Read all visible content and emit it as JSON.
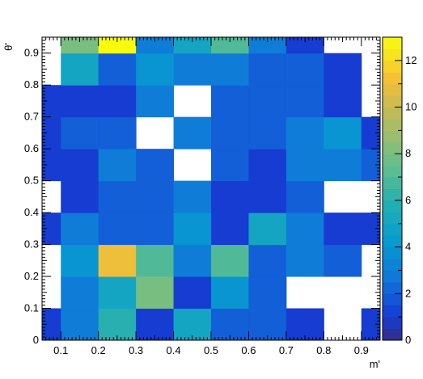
{
  "chart_data": {
    "type": "heatmap",
    "title": "",
    "xlabel": "m'",
    "ylabel": "θ'",
    "xlim": [
      0.05,
      0.95
    ],
    "ylim": [
      0,
      0.95
    ],
    "x_bin_edges": [
      0.05,
      0.1,
      0.2,
      0.3,
      0.4,
      0.5,
      0.6,
      0.7,
      0.8,
      0.9,
      0.95
    ],
    "y_bin_edges": [
      0,
      0.1,
      0.2,
      0.3,
      0.4,
      0.5,
      0.6,
      0.7,
      0.8,
      0.9,
      0.95
    ],
    "x_ticks": [
      "0.1",
      "0.2",
      "0.3",
      "0.4",
      "0.5",
      "0.6",
      "0.7",
      "0.8",
      "0.9"
    ],
    "y_ticks": [
      "0",
      "0.1",
      "0.2",
      "0.3",
      "0.4",
      "0.5",
      "0.6",
      "0.7",
      "0.8",
      "0.9"
    ],
    "colorbar_range": [
      0,
      13
    ],
    "colorbar_ticks": [
      "0",
      "2",
      "4",
      "6",
      "8",
      "10",
      "12"
    ],
    "grid": false,
    "values_note_rows_bottom_to_top": "",
    "z": [
      [
        1,
        3,
        6,
        1,
        5,
        2,
        2,
        1,
        0,
        1
      ],
      [
        0,
        3,
        5,
        8,
        1,
        4,
        2,
        0,
        0,
        0
      ],
      [
        0,
        4,
        11,
        7,
        3,
        7,
        2,
        3,
        2,
        0
      ],
      [
        1,
        3,
        2,
        2,
        4,
        1,
        5,
        3,
        1,
        1
      ],
      [
        0,
        1,
        2,
        2,
        3,
        1,
        1,
        2,
        0,
        0
      ],
      [
        1,
        1,
        3,
        2,
        0,
        2,
        1,
        3,
        3,
        2
      ],
      [
        1,
        2,
        2,
        0,
        3,
        2,
        2,
        3,
        4,
        1
      ],
      [
        1,
        1,
        1,
        3,
        0,
        2,
        2,
        2,
        1,
        0
      ],
      [
        0,
        5,
        2,
        4,
        3,
        3,
        2,
        2,
        1,
        0
      ],
      [
        0,
        8,
        13,
        3,
        5,
        7,
        3,
        1,
        0,
        0
      ]
    ]
  }
}
